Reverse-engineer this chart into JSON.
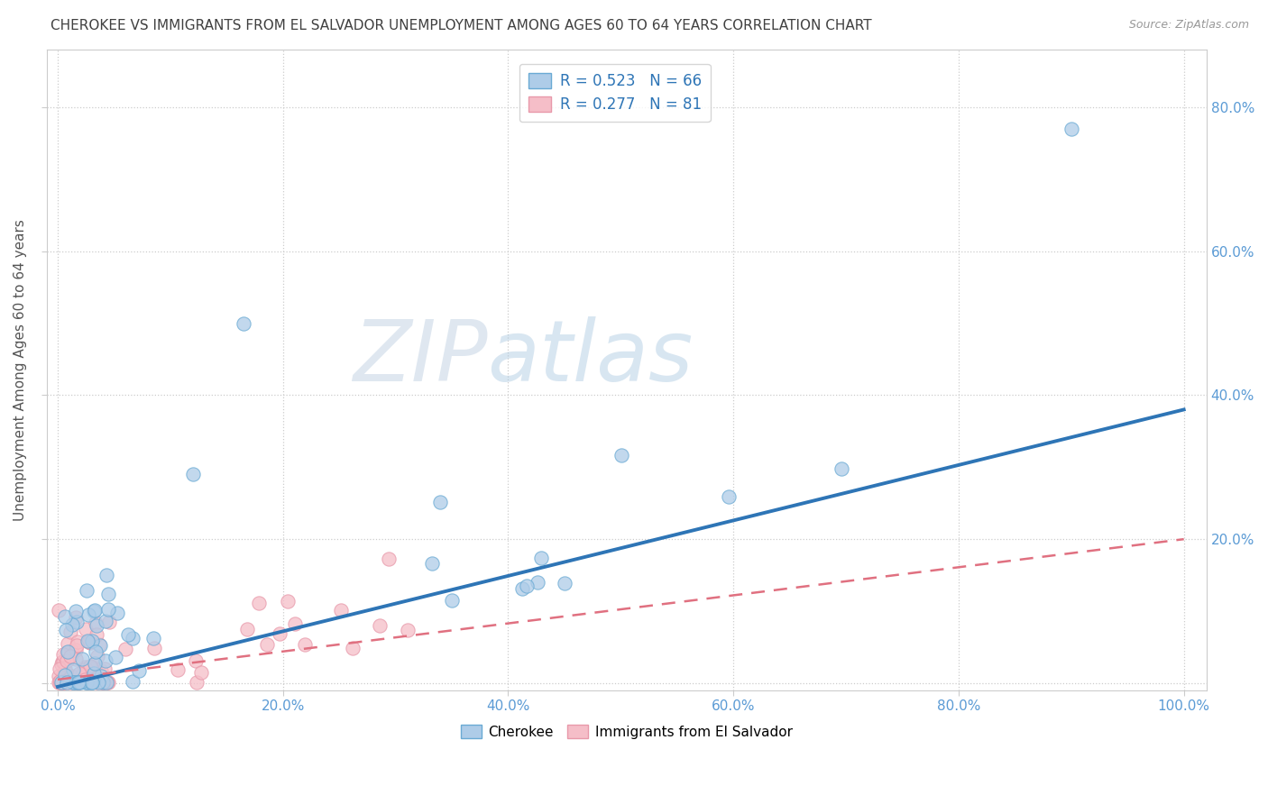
{
  "title": "CHEROKEE VS IMMIGRANTS FROM EL SALVADOR UNEMPLOYMENT AMONG AGES 60 TO 64 YEARS CORRELATION CHART",
  "source": "Source: ZipAtlas.com",
  "ylabel": "Unemployment Among Ages 60 to 64 years",
  "xlim": [
    -0.01,
    1.02
  ],
  "ylim": [
    -0.01,
    0.88
  ],
  "x_ticks": [
    0.0,
    0.2,
    0.4,
    0.6,
    0.8,
    1.0
  ],
  "x_tick_labels": [
    "0.0%",
    "20.0%",
    "40.0%",
    "60.0%",
    "80.0%",
    "100.0%"
  ],
  "y_ticks": [
    0.0,
    0.2,
    0.4,
    0.6,
    0.8
  ],
  "y_tick_labels_right": [
    "",
    "20.0%",
    "40.0%",
    "60.0%",
    "80.0%"
  ],
  "legend1_r": "R = 0.523",
  "legend1_n": "N = 66",
  "legend2_r": "R = 0.277",
  "legend2_n": "N = 81",
  "cherokee_color": "#aecce8",
  "cherokee_edge": "#6aaad4",
  "cherokee_line_color": "#2e75b6",
  "salvador_color": "#f5bec8",
  "salvador_edge": "#e899aa",
  "salvador_line_color": "#e07080",
  "grid_color": "#cccccc",
  "title_color": "#404040",
  "axis_label_color": "#5b9bd5",
  "watermark_zip_color": "#c8d8e8",
  "watermark_atlas_color": "#b8cce0",
  "cherokee_line_end_y": 0.38,
  "salvador_line_end_y": 0.2,
  "cherokee_line_start_y": -0.005,
  "salvador_line_start_y": 0.005
}
